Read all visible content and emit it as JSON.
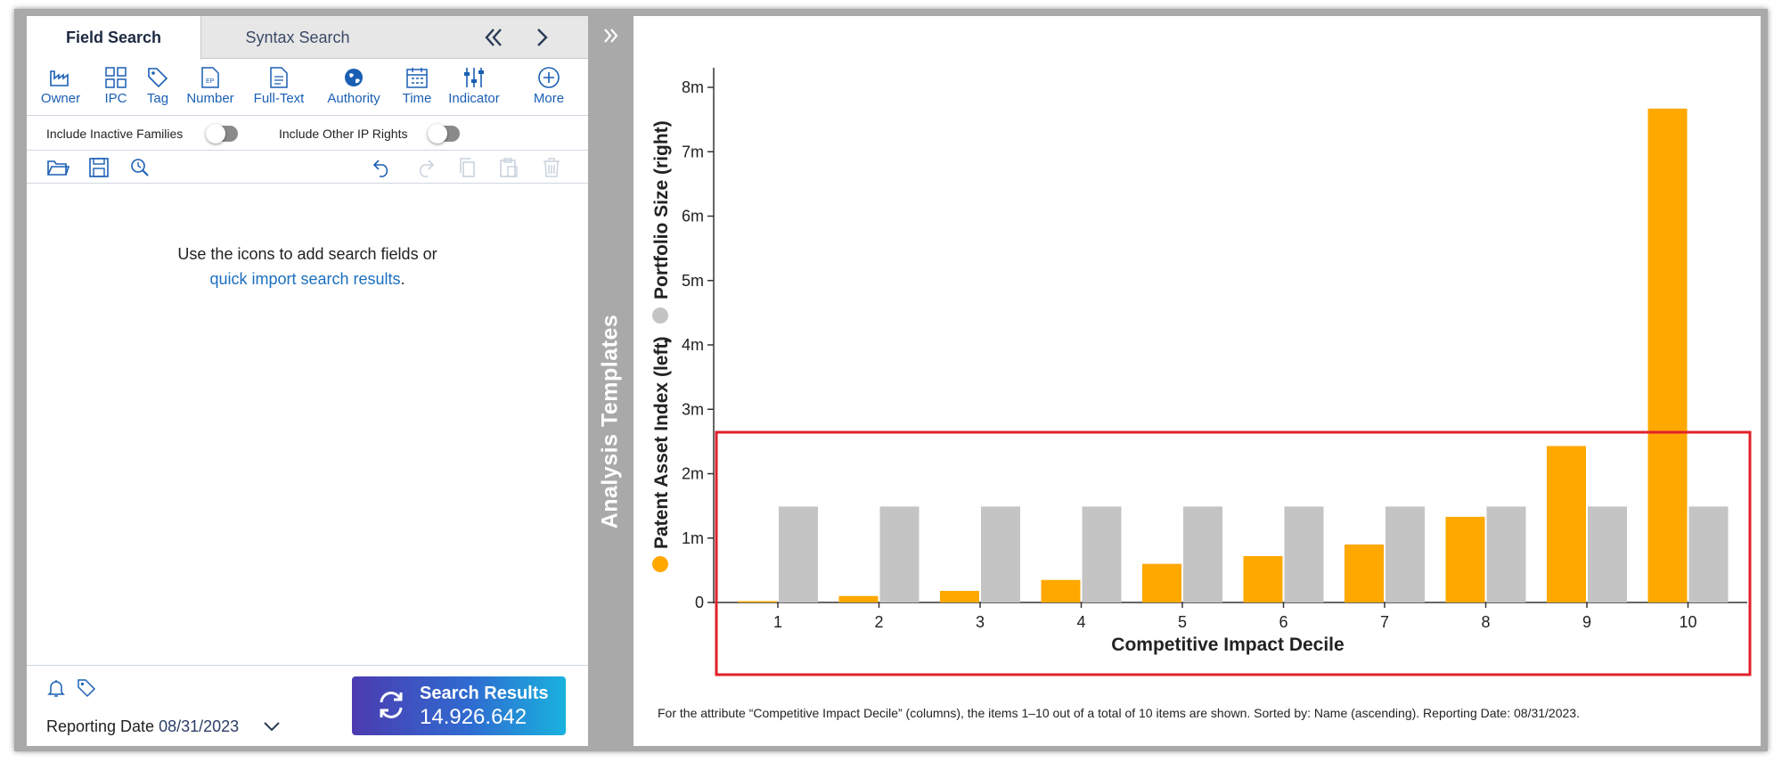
{
  "tabs": {
    "field_search": "Field Search",
    "syntax_search": "Syntax Search"
  },
  "nav": {
    "collapse_icon": "double-chevron-left-icon",
    "next_icon": "chevron-right-icon"
  },
  "toolbar": [
    {
      "label": "Owner",
      "icon": "factory-icon"
    },
    {
      "label": "IPC",
      "icon": "grid-icon"
    },
    {
      "label": "Tag",
      "icon": "tag-icon"
    },
    {
      "label": "Number",
      "icon": "ep-document-icon"
    },
    {
      "label": "Full-Text",
      "icon": "document-icon"
    },
    {
      "label": "Authority",
      "icon": "globe-icon"
    },
    {
      "label": "Time",
      "icon": "calendar-icon"
    },
    {
      "label": "Indicator",
      "icon": "sliders-icon"
    },
    {
      "label": "More",
      "icon": "plus-circle-icon"
    }
  ],
  "toggles": {
    "inactive_label": "Include Inactive Families",
    "inactive_on": false,
    "other_ip_label": "Include Other IP Rights",
    "other_ip_on": false
  },
  "hint": {
    "line1": "Use the icons to add search fields or",
    "link": "quick import search results",
    "end": "."
  },
  "footer": {
    "reporting_label": "Reporting Date",
    "reporting_date": "08/31/2023",
    "search_label": "Search Results",
    "search_count": "14.926.642"
  },
  "side_strip": {
    "label": "Analysis Templates"
  },
  "chart_data": {
    "type": "bar",
    "xlabel": "Competitive Impact Decile",
    "ylabel_series1": "Patent Asset Index (left)",
    "ylabel_sep": ",",
    "ylabel_series2": "Portfolio Size (right)",
    "categories": [
      "1",
      "2",
      "3",
      "4",
      "5",
      "6",
      "7",
      "8",
      "9",
      "10"
    ],
    "series": [
      {
        "name": "Patent Asset Index (left)",
        "color": "#ffa800",
        "values": [
          0.02,
          0.1,
          0.18,
          0.35,
          0.6,
          0.72,
          0.9,
          1.33,
          2.43,
          7.67
        ]
      },
      {
        "name": "Portfolio Size (right)",
        "color": "#c4c4c4",
        "values": [
          1.49,
          1.49,
          1.49,
          1.49,
          1.49,
          1.49,
          1.49,
          1.49,
          1.49,
          1.49
        ]
      }
    ],
    "ylim": [
      0,
      8
    ],
    "yticks": [
      "0",
      "1m",
      "2m",
      "3m",
      "4m",
      "5m",
      "6m",
      "7m",
      "8m"
    ],
    "highlight_color": "#e0202a",
    "grid": false,
    "legend": "left vertical axis label"
  },
  "footnote": "For the attribute “Competitive Impact Decile” (columns), the items 1–10 out of a total of 10 items are shown. Sorted by: Name (ascending). Reporting Date: 08/31/2023."
}
